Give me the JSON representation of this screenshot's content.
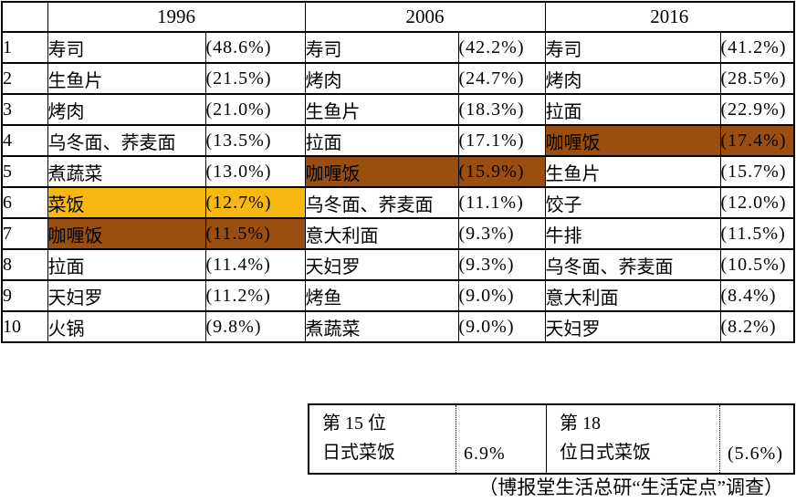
{
  "chart_data": {
    "type": "table",
    "years": [
      "1996",
      "2006",
      "2016"
    ],
    "rows": [
      {
        "rank": "1",
        "entries": [
          {
            "item": "寿司",
            "pct": "(48.6%)",
            "hl": null
          },
          {
            "item": "寿司",
            "pct": "(42.2%)",
            "hl": null
          },
          {
            "item": "寿司",
            "pct": "(41.2%)",
            "hl": null
          }
        ]
      },
      {
        "rank": "2",
        "entries": [
          {
            "item": "生鱼片",
            "pct": "(21.5%)",
            "hl": null
          },
          {
            "item": "烤肉",
            "pct": "(24.7%)",
            "hl": null
          },
          {
            "item": "烤肉",
            "pct": "(28.5%)",
            "hl": null
          }
        ]
      },
      {
        "rank": "3",
        "entries": [
          {
            "item": "烤肉",
            "pct": "(21.0%)",
            "hl": null
          },
          {
            "item": "生鱼片",
            "pct": "(18.3%)",
            "hl": null
          },
          {
            "item": "拉面",
            "pct": "(22.9%)",
            "hl": null
          }
        ]
      },
      {
        "rank": "4",
        "entries": [
          {
            "item": "乌冬面、荞麦面",
            "pct": "(13.5%)",
            "hl": null
          },
          {
            "item": "拉面",
            "pct": "(17.1%)",
            "hl": null
          },
          {
            "item": "咖喱饭",
            "pct": "(17.4%)",
            "hl": "brown"
          }
        ]
      },
      {
        "rank": "5",
        "entries": [
          {
            "item": "煮蔬菜",
            "pct": "(13.0%)",
            "hl": null
          },
          {
            "item": "咖喱饭",
            "pct": "(15.9%)",
            "hl": "brown"
          },
          {
            "item": "生鱼片",
            "pct": "(15.7%)",
            "hl": null
          }
        ]
      },
      {
        "rank": "6",
        "entries": [
          {
            "item": "菜饭",
            "pct": "(12.7%)",
            "hl": "gold"
          },
          {
            "item": "乌冬面、荞麦面",
            "pct": "(11.1%)",
            "hl": null
          },
          {
            "item": "饺子",
            "pct": "(12.0%)",
            "hl": null
          }
        ]
      },
      {
        "rank": "7",
        "entries": [
          {
            "item": "咖喱饭",
            "pct": "(11.5%)",
            "hl": "brown"
          },
          {
            "item": "意大利面",
            "pct": "(9.3%)",
            "hl": null
          },
          {
            "item": "牛排",
            "pct": "(11.5%)",
            "hl": null
          }
        ]
      },
      {
        "rank": "8",
        "entries": [
          {
            "item": "拉面",
            "pct": "(11.4%)",
            "hl": null
          },
          {
            "item": "天妇罗",
            "pct": "(9.3%)",
            "hl": null
          },
          {
            "item": "乌冬面、荞麦面",
            "pct": "(10.5%)",
            "hl": null
          }
        ]
      },
      {
        "rank": "9",
        "entries": [
          {
            "item": "天妇罗",
            "pct": "(11.2%)",
            "hl": null
          },
          {
            "item": "烤鱼",
            "pct": "(9.0%)",
            "hl": null
          },
          {
            "item": "意大利面",
            "pct": "(8.4%)",
            "hl": null
          }
        ]
      },
      {
        "rank": "10",
        "entries": [
          {
            "item": "火锅",
            "pct": "(9.8%)",
            "hl": null
          },
          {
            "item": "煮蔬菜",
            "pct": "(9.0%)",
            "hl": null
          },
          {
            "item": "天妇罗",
            "pct": "(8.2%)",
            "hl": null
          }
        ]
      }
    ],
    "extra": {
      "cells": [
        {
          "line1": "第 15 位",
          "line2": "日式菜饭",
          "pct": "6.9%"
        },
        {
          "line1": "第 18",
          "line2": "位日式菜饭",
          "pct": "(5.6%)"
        }
      ]
    },
    "source_note": "（博报堂生活总研“生活定点”调查）"
  },
  "colors": {
    "gold": "#F8B812",
    "brown": "#9A4E10",
    "border": "#000000"
  }
}
